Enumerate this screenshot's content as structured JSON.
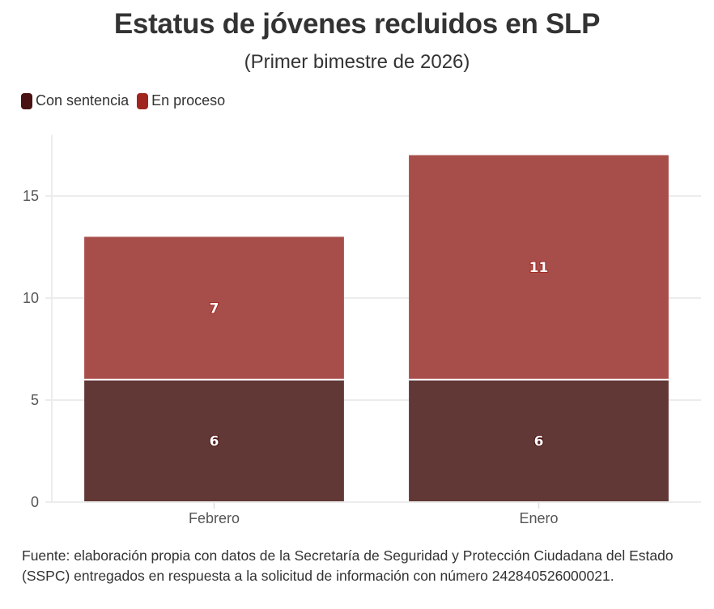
{
  "chart_data": {
    "type": "bar",
    "stacked": true,
    "title": "Estatus de jóvenes recluidos en SLP",
    "subtitle": "(Primer bimestre de 2026)",
    "categories": [
      "Febrero",
      "Enero"
    ],
    "series": [
      {
        "name": "Con sentencia",
        "values": [
          6,
          6
        ],
        "color": "#4a1212",
        "bar_color": "#623836"
      },
      {
        "name": "En proceso",
        "values": [
          7,
          11
        ],
        "color": "#a0251f",
        "bar_color": "#a84e4a"
      }
    ],
    "xlabel": "",
    "ylabel": "",
    "ylim": [
      0,
      18
    ],
    "yticks": [
      0,
      5,
      10,
      15
    ],
    "grid": true,
    "legend_position": "top-left",
    "data_labels": true,
    "source": "Fuente: elaboración propia con datos de la Secretaría de Seguridad y Protección Ciudadana del Estado (SSPC) entregados en respuesta a la solicitud de información con número 242840526000021."
  }
}
